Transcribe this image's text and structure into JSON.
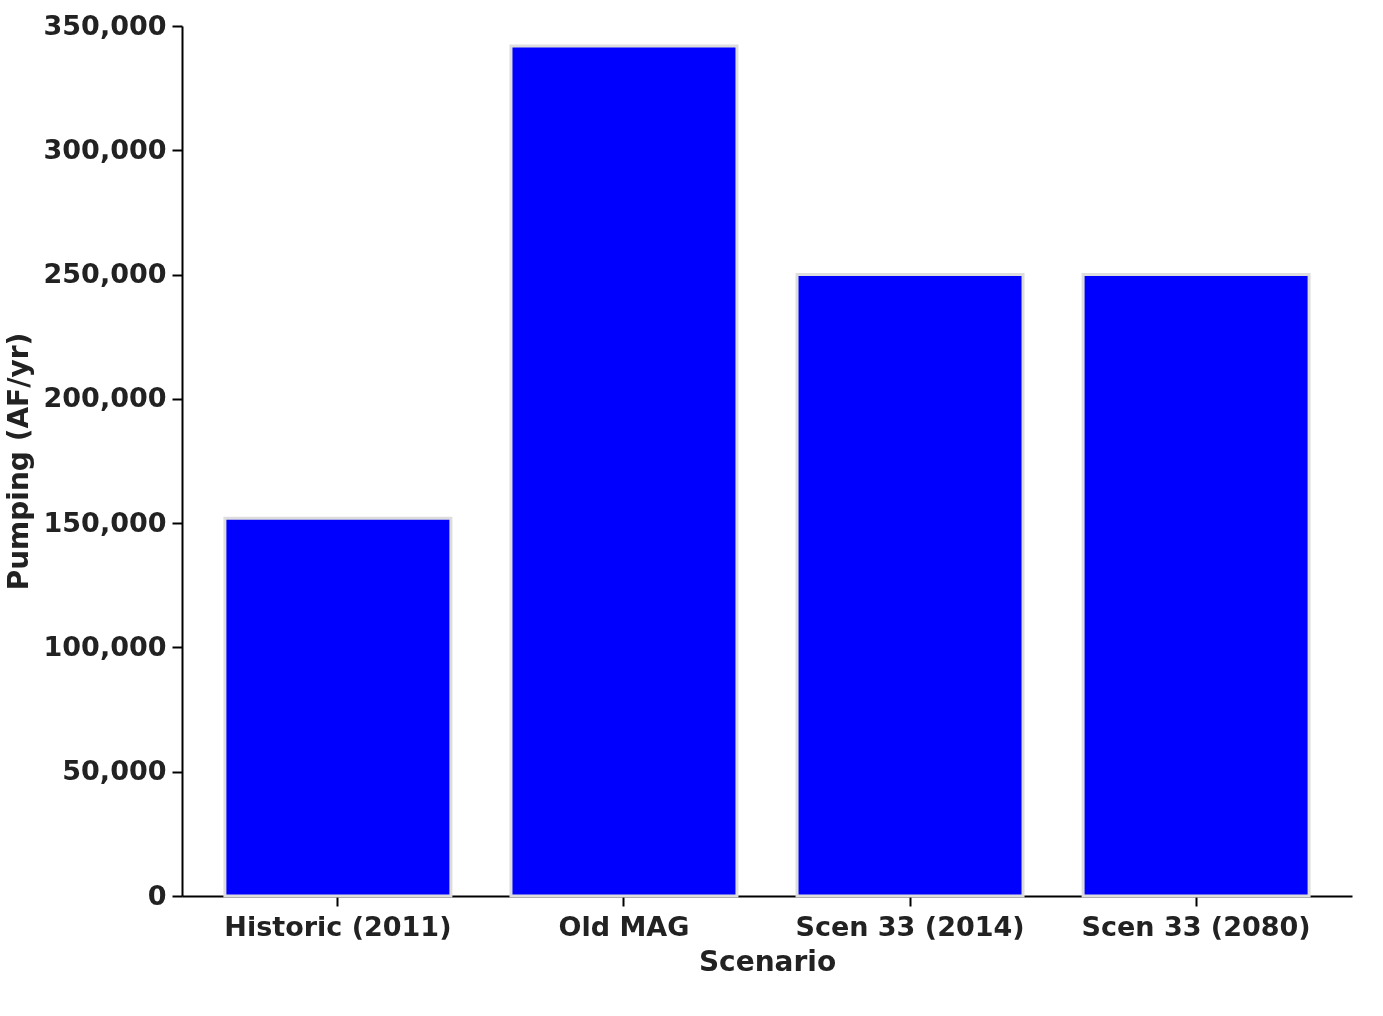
{
  "chart_data": {
    "type": "bar",
    "xlabel": "Scenario",
    "ylabel": "Pumping (AF/yr)",
    "categories": [
      "Historic (2011)",
      "Old MAG",
      "Scen 33 (2014)",
      "Scen 33 (2080)"
    ],
    "values": [
      152000,
      342000,
      250000,
      250000
    ],
    "color": "#0000ff",
    "ylim": [
      0,
      350000
    ],
    "yticks": [
      {
        "value": 0,
        "label": "0"
      },
      {
        "value": 50000,
        "label": "50,000"
      },
      {
        "value": 100000,
        "label": "100,000"
      },
      {
        "value": 150000,
        "label": "150,000"
      },
      {
        "value": 200000,
        "label": "200,000"
      },
      {
        "value": 250000,
        "label": "250,000"
      },
      {
        "value": 300000,
        "label": "300,000"
      },
      {
        "value": 350000,
        "label": "350,000"
      }
    ],
    "grid": false
  }
}
